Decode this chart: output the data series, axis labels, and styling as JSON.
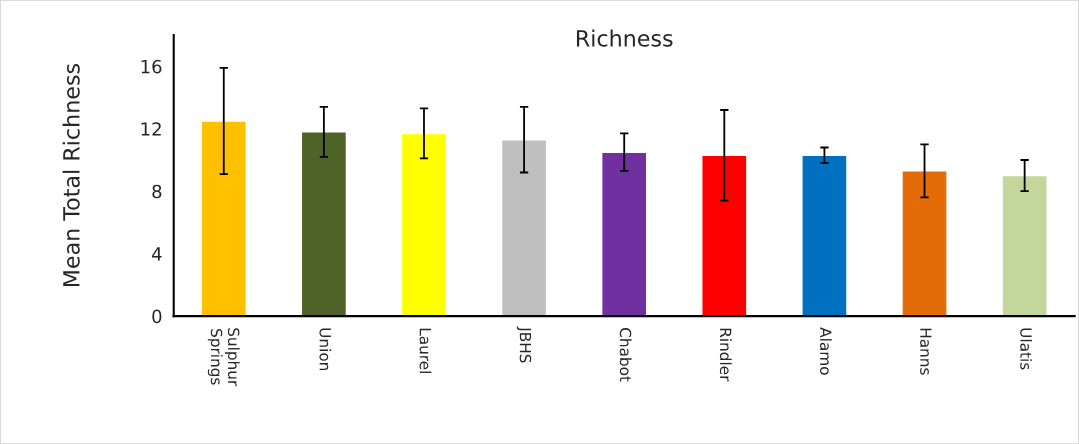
{
  "chart_data": {
    "type": "bar",
    "title": "Richness",
    "ylabel": "Mean Total Richness",
    "categories": [
      "Sulphur Springs",
      "Union",
      "Laurel",
      "JBHS",
      "Chabot",
      "Rindler",
      "Alamo",
      "Hanns",
      "Ulatis"
    ],
    "values": [
      12.5,
      11.8,
      11.7,
      11.3,
      10.5,
      10.3,
      10.3,
      9.3,
      9.0
    ],
    "errors": [
      3.4,
      1.6,
      1.6,
      2.1,
      1.2,
      2.9,
      0.5,
      1.7,
      1.0
    ],
    "colors": [
      "#ffc000",
      "#4f6228",
      "#ffff00",
      "#bfbfbf",
      "#7030a0",
      "#ff0000",
      "#0070c0",
      "#e36c09",
      "#c3d69b"
    ],
    "ylim": [
      0,
      18
    ],
    "yticks": [
      0,
      4,
      8,
      12,
      16
    ],
    "grid": false,
    "legend": false
  }
}
